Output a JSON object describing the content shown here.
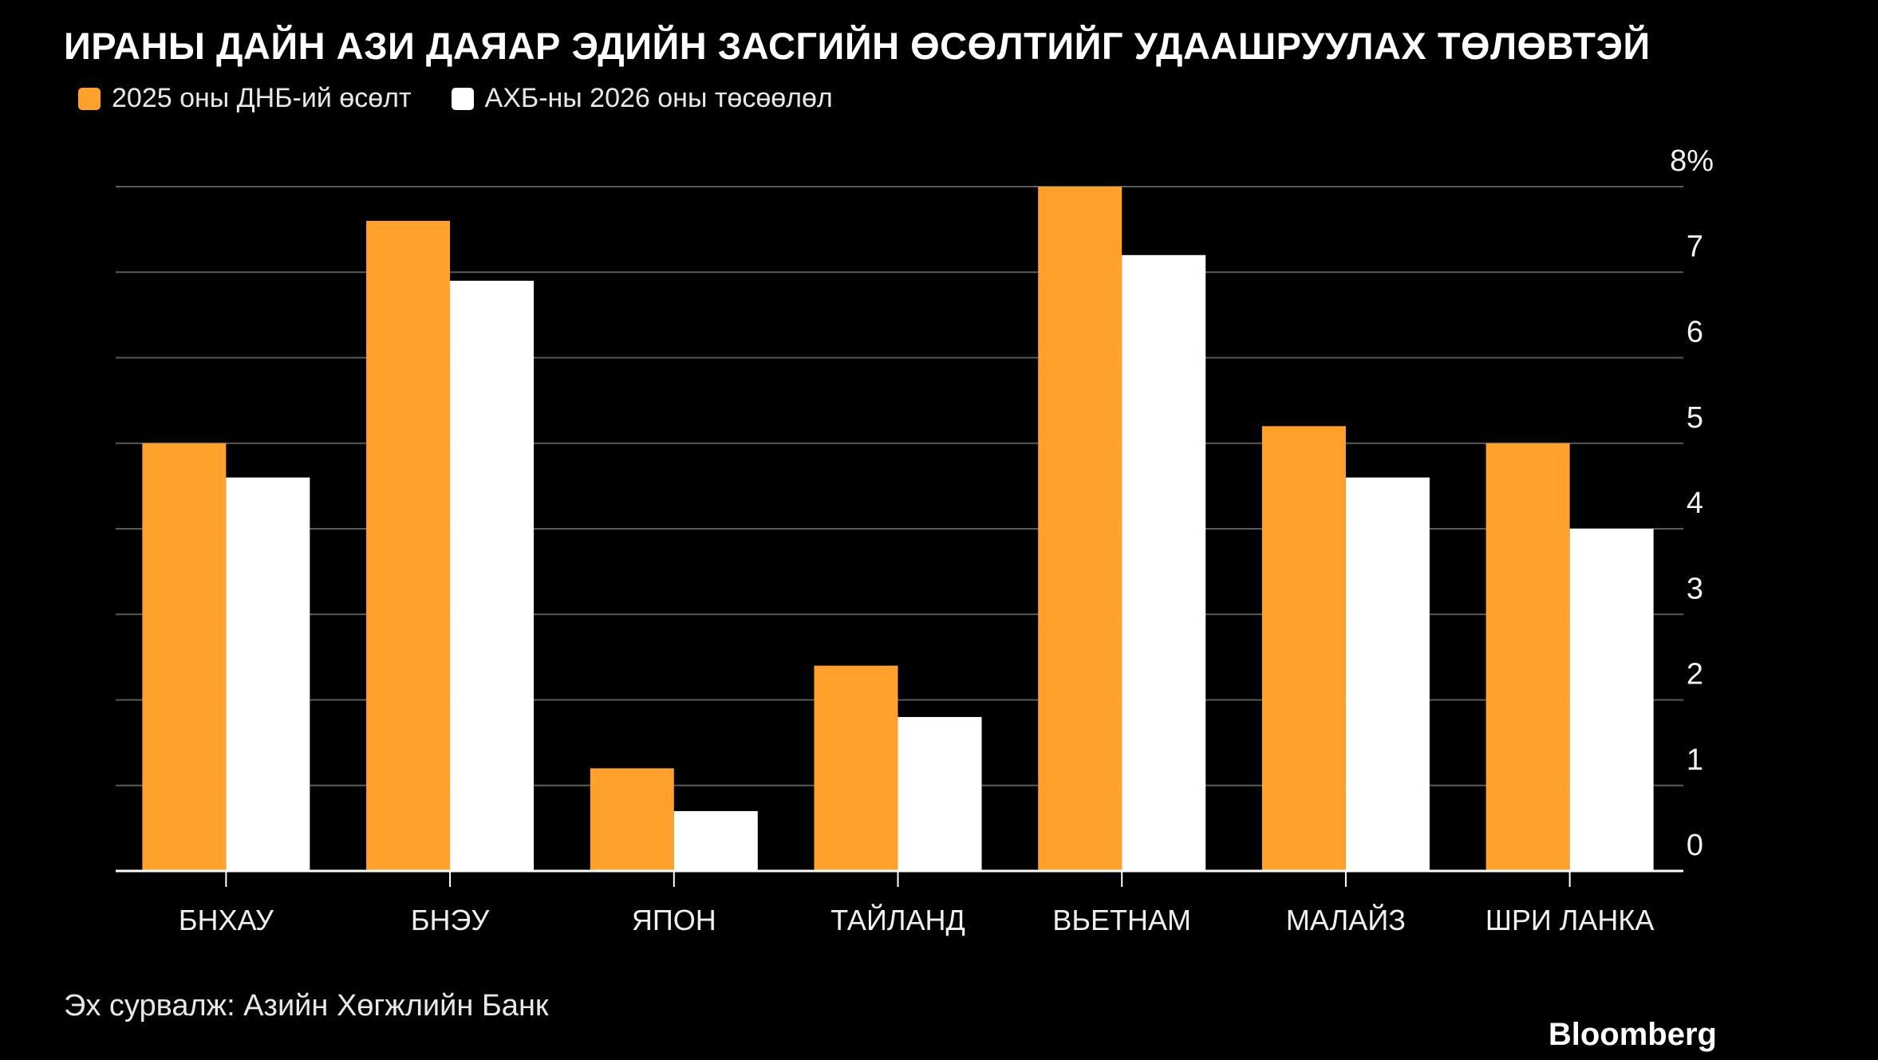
{
  "chart_data": {
    "type": "bar",
    "title": "ИРАНЫ ДАЙН АЗИ ДАЯАР ЭДИЙН ЗАСГИЙН ӨСӨЛТИЙГ УДААШРУУЛАХ ТӨЛӨВТЭЙ",
    "categories": [
      "БНХАУ",
      "БНЭУ",
      "ЯПОН",
      "ТАЙЛАНД",
      "ВЬЕТНАМ",
      "МАЛАЙЗ",
      "ШРИ ЛАНКА"
    ],
    "series": [
      {
        "name": "2025 оны ДНБ-ий өсөлт",
        "color": "#FFA12B",
        "values": [
          5.0,
          7.6,
          1.2,
          2.4,
          8.0,
          5.2,
          5.0
        ]
      },
      {
        "name": "АХБ-ны 2026 оны төсөөлөл",
        "color": "#FFFFFF",
        "values": [
          4.6,
          6.9,
          0.7,
          1.8,
          7.2,
          4.6,
          4.0
        ]
      }
    ],
    "ylim": [
      0,
      8
    ],
    "yticks": [
      "0",
      "1",
      "2",
      "3",
      "4",
      "5",
      "6",
      "7",
      "8%"
    ],
    "grid": true,
    "legend_position": "top-left",
    "xlabel": "",
    "ylabel": ""
  },
  "source": "Эх сурвалж: Азийн Хөгжлийн Банк",
  "brand": "Bloomberg"
}
